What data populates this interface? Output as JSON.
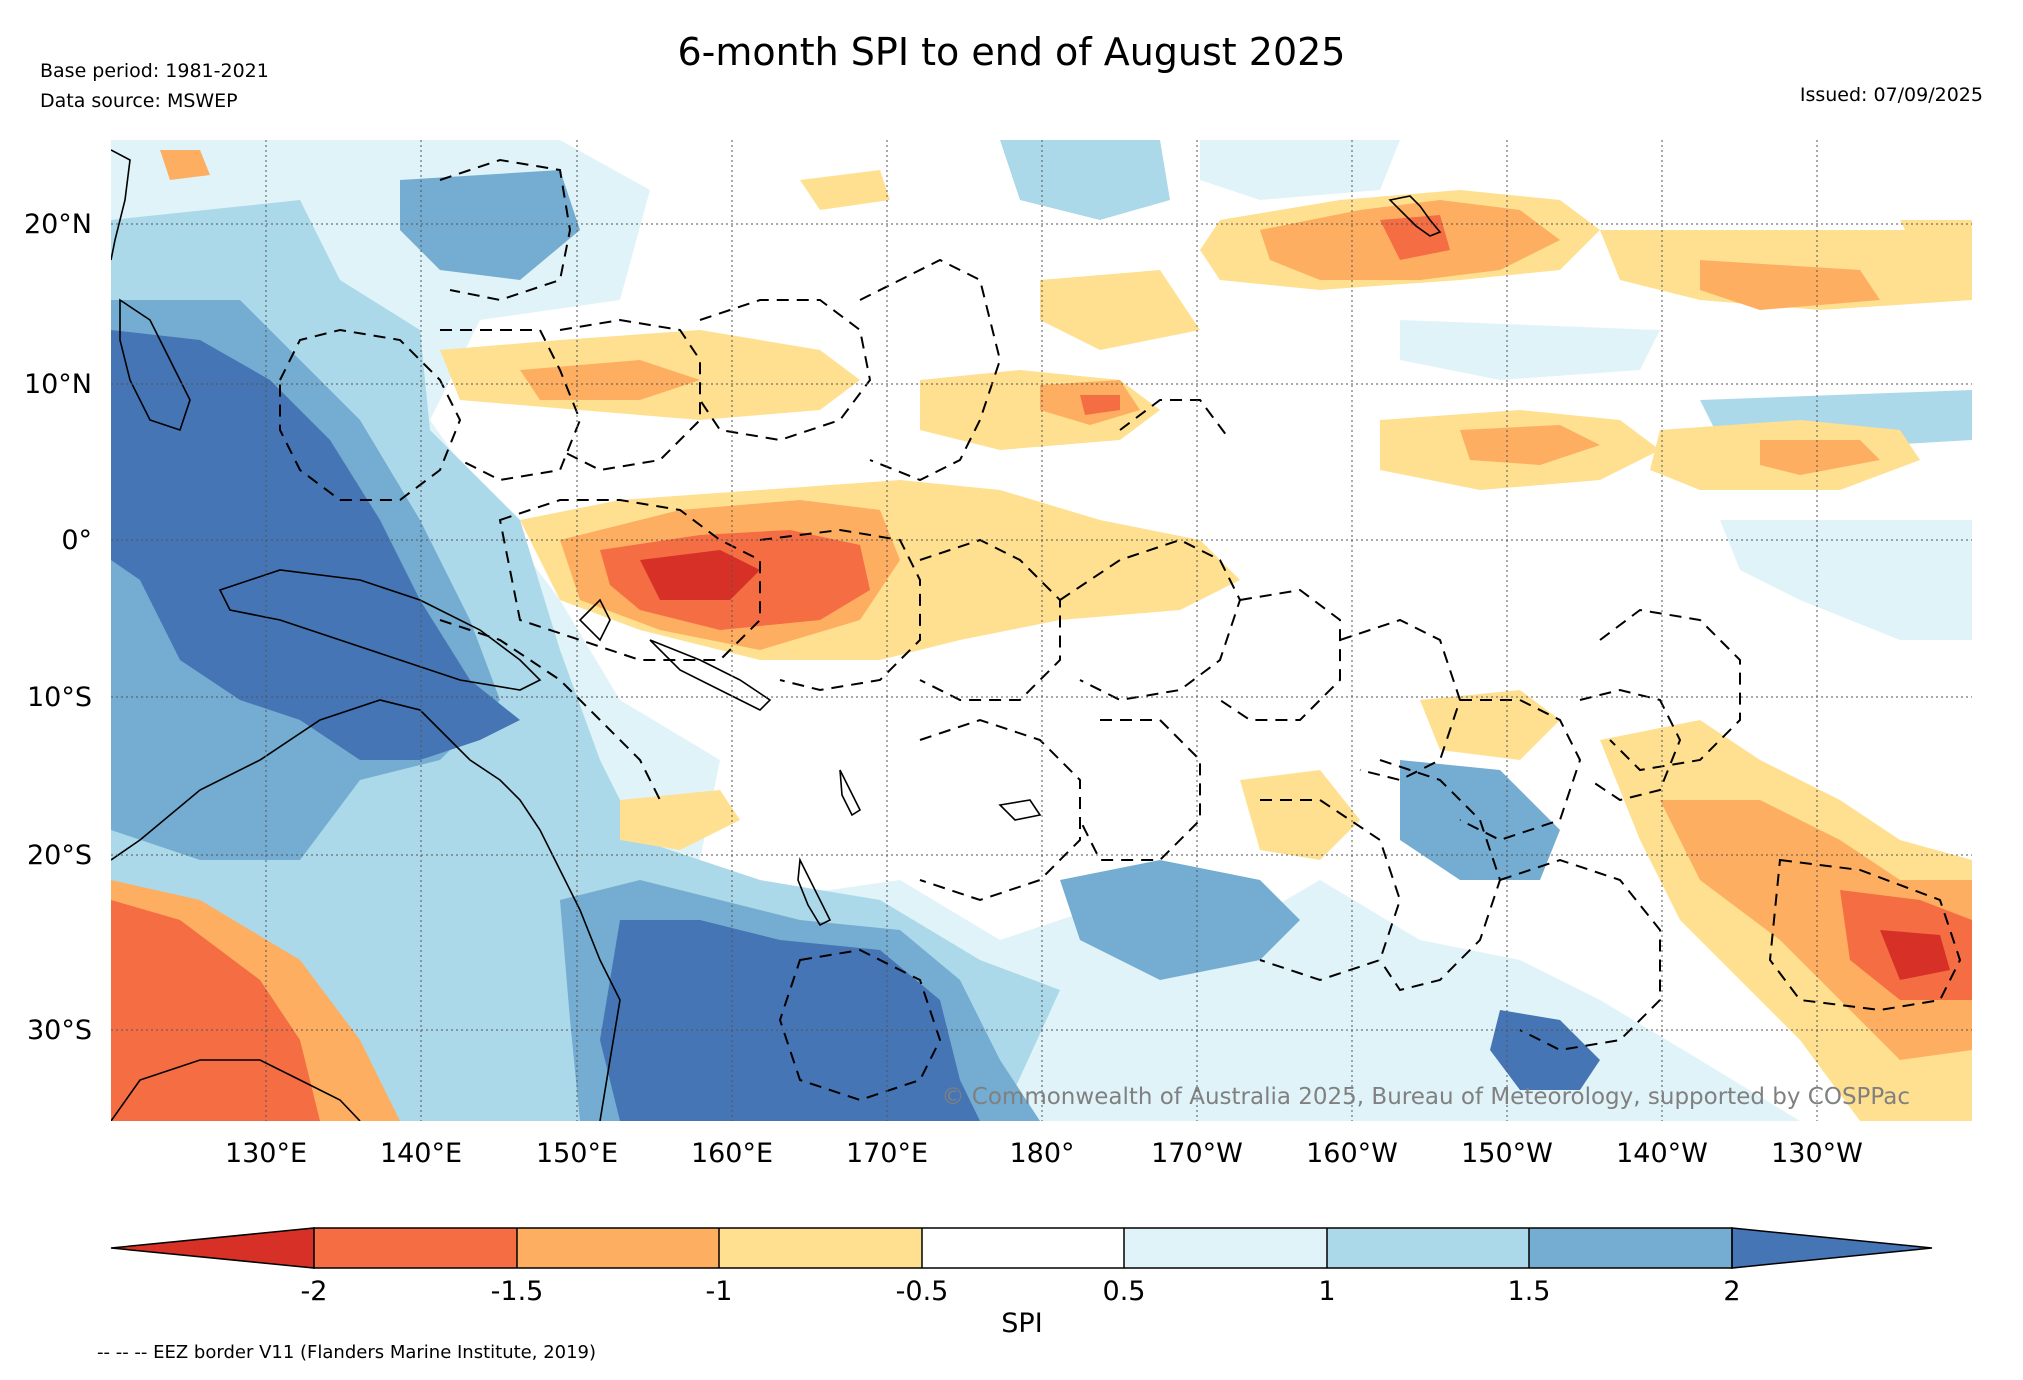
{
  "header": {
    "title": "6-month SPI to end of August 2025",
    "base_period": "Base period: 1981-2021",
    "data_source": "Data source: MSWEP",
    "issued": "Issued: 07/09/2025"
  },
  "map": {
    "lat_labels": [
      "20°N",
      "10°N",
      "0°",
      "10°S",
      "20°S",
      "30°S"
    ],
    "lon_labels": [
      "130°E",
      "140°E",
      "150°E",
      "160°E",
      "170°E",
      "180°",
      "170°W",
      "160°W",
      "150°W",
      "140°W",
      "130°W"
    ],
    "copyright": "© Commonwealth of Australia 2025, Bureau of Meteorology, supported by COSPPac"
  },
  "colorbar": {
    "label": "SPI",
    "ticks": [
      "-2",
      "-1.5",
      "-1",
      "-0.5",
      "0.5",
      "1",
      "1.5",
      "2"
    ],
    "colors": {
      "lt_-2": "#d73027",
      "-2_-1.5": "#f46d43",
      "-1.5_-1": "#fdae61",
      "-1_-0.5": "#fee090",
      "-0.5_0.5": "#ffffff",
      "0.5_1": "#e0f3f8",
      "1_1.5": "#abd9e9",
      "1.5_2": "#74add1",
      "gt_2": "#4575b4"
    }
  },
  "footnote": "-- -- -- EEZ border V11 (Flanders Marine Institute, 2019)"
}
